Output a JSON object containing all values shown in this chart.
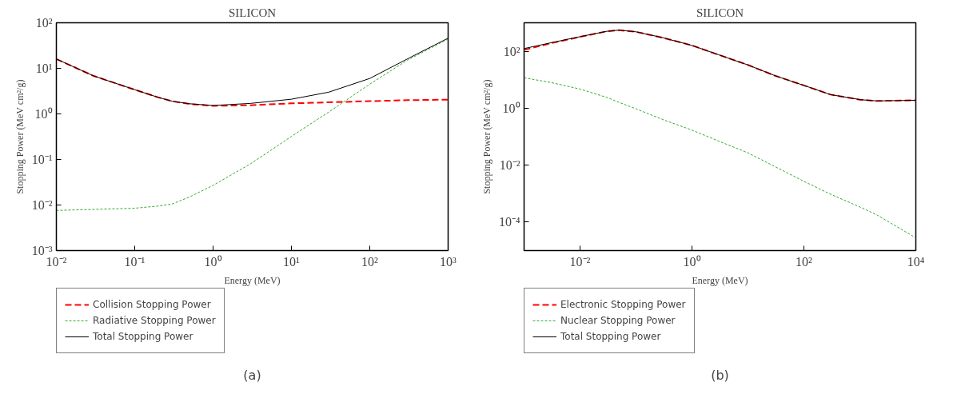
{
  "chart_data": [
    {
      "type": "line",
      "title": "SILICON",
      "xlabel": "Energy (MeV)",
      "ylabel": "Stopping Power (MeV cm²/g)",
      "log": "xy",
      "grid": false,
      "legend": "bottom",
      "xlim": [
        0.01,
        1000
      ],
      "ylim": [
        0.001,
        100
      ],
      "xticks": [
        {
          "value": 0.01,
          "label": "10⁻²"
        },
        {
          "value": 0.1,
          "label": "10⁻¹"
        },
        {
          "value": 1,
          "label": "10⁰"
        },
        {
          "value": 10,
          "label": "10¹"
        },
        {
          "value": 100,
          "label": "10²"
        },
        {
          "value": 1000,
          "label": "10³"
        }
      ],
      "yticks": [
        {
          "value": 0.001,
          "label": "10⁻³"
        },
        {
          "value": 0.01,
          "label": "10⁻²"
        },
        {
          "value": 0.1,
          "label": "10⁻¹"
        },
        {
          "value": 1,
          "label": "10⁰"
        },
        {
          "value": 10,
          "label": "10¹"
        },
        {
          "value": 100,
          "label": "10²"
        }
      ],
      "x": [
        0.01,
        0.03,
        0.1,
        0.2,
        0.3,
        0.5,
        1,
        3,
        10,
        30,
        100,
        300,
        1000
      ],
      "series": [
        {
          "name": "Collision Stopping Power",
          "color": "#ff0000",
          "line_style": "dashed",
          "values": [
            16,
            6.8,
            3.4,
            2.3,
            1.9,
            1.65,
            1.5,
            1.55,
            1.7,
            1.8,
            1.9,
            2.0,
            2.05
          ]
        },
        {
          "name": "Radiative Stopping Power",
          "color": "#33aa33",
          "line_style": "dotted",
          "values": [
            0.0076,
            0.008,
            0.0085,
            0.0095,
            0.0105,
            0.015,
            0.027,
            0.08,
            0.32,
            1.1,
            4.5,
            15,
            44
          ]
        },
        {
          "name": "Total Stopping Power",
          "color": "#000000",
          "line_style": "solid",
          "values": [
            16,
            6.8,
            3.4,
            2.3,
            1.9,
            1.67,
            1.53,
            1.7,
            2.1,
            3.0,
            6.0,
            16,
            46
          ]
        }
      ],
      "annotations": [
        "(a)"
      ]
    },
    {
      "type": "line",
      "title": "SILICON",
      "xlabel": "Energy (MeV)",
      "ylabel": "Stopping Power (MeV cm²/g)",
      "log": "xy",
      "grid": false,
      "legend": "bottom",
      "xlim": [
        0.001,
        10000
      ],
      "ylim": [
        1e-05,
        1000
      ],
      "xticks": [
        {
          "value": 0.01,
          "label": "10⁻²"
        },
        {
          "value": 1,
          "label": "10⁰"
        },
        {
          "value": 100,
          "label": "10²"
        },
        {
          "value": 10000,
          "label": "10⁴"
        }
      ],
      "yticks": [
        {
          "value": 0.0001,
          "label": "10⁻⁴"
        },
        {
          "value": 0.01,
          "label": "10⁻²"
        },
        {
          "value": 1,
          "label": "10⁰"
        },
        {
          "value": 100,
          "label": "10²"
        }
      ],
      "x": [
        0.001,
        0.003,
        0.01,
        0.03,
        0.05,
        0.1,
        0.3,
        1,
        3,
        10,
        30,
        100,
        300,
        1000,
        2000,
        10000
      ],
      "series": [
        {
          "name": "Electronic Stopping Power",
          "color": "#ff0000",
          "line_style": "dashed",
          "values": [
            112,
            190,
            320,
            500,
            550,
            480,
            300,
            160,
            75,
            33,
            14,
            6.3,
            3.0,
            2.0,
            1.8,
            1.9
          ]
        },
        {
          "name": "Nuclear Stopping Power",
          "color": "#33aa33",
          "line_style": "dotted",
          "values": [
            11.7,
            8,
            4.7,
            2.4,
            1.6,
            0.95,
            0.4,
            0.17,
            0.07,
            0.027,
            0.009,
            0.0027,
            0.00095,
            0.00034,
            0.00018,
            2.8e-05
          ]
        },
        {
          "name": "Total Stopping Power",
          "color": "#000000",
          "line_style": "solid",
          "values": [
            124,
            198,
            325,
            502,
            552,
            481,
            300,
            160,
            75,
            33,
            14,
            6.3,
            3.0,
            2.0,
            1.8,
            1.9
          ]
        }
      ],
      "annotations": [
        "(b)"
      ]
    }
  ]
}
